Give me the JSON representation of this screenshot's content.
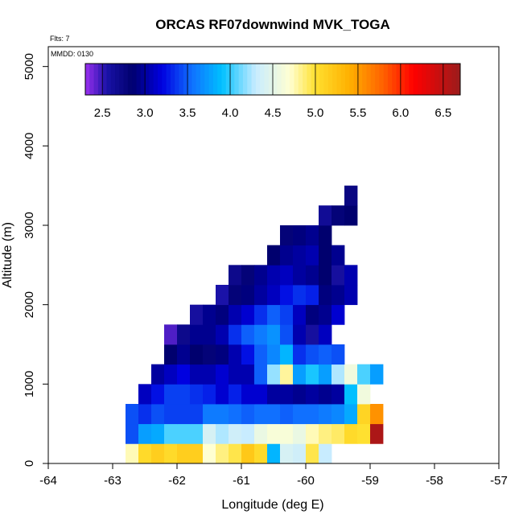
{
  "chart_data": {
    "type": "heatmap",
    "title": "ORCAS RF07downwind MVK_TOGA",
    "xlabel": "Longitude (deg E)",
    "ylabel": "Altitude (m)",
    "xlim": [
      -64,
      -57
    ],
    "ylim": [
      0,
      5250
    ],
    "x_ticks": [
      "-64",
      "-63",
      "-62",
      "-61",
      "-60",
      "-59",
      "-58",
      "-57"
    ],
    "y_ticks": [
      "0",
      "1000",
      "2000",
      "3000",
      "4000",
      "5000"
    ],
    "flights_note": "Flts: 7",
    "date_note": "MMDD: 0130",
    "colorbar": {
      "min": 2.3,
      "max": 6.7,
      "tick_labels": [
        "2.5",
        "3.0",
        "3.5",
        "4.0",
        "4.5",
        "5.0",
        "5.5",
        "6.0",
        "6.5"
      ],
      "tick_values": [
        2.5,
        3.0,
        3.5,
        4.0,
        4.5,
        5.0,
        5.5,
        6.0,
        6.5
      ],
      "stops": [
        {
          "v": 2.3,
          "c": "#9b30f0"
        },
        {
          "v": 2.55,
          "c": "#1a12a8"
        },
        {
          "v": 2.85,
          "c": "#00006e"
        },
        {
          "v": 3.2,
          "c": "#0000e0"
        },
        {
          "v": 3.55,
          "c": "#1070ff"
        },
        {
          "v": 3.9,
          "c": "#00c0ff"
        },
        {
          "v": 4.3,
          "c": "#c8ecff"
        },
        {
          "v": 4.7,
          "c": "#ffffd2"
        },
        {
          "v": 5.0,
          "c": "#ffe030"
        },
        {
          "v": 5.4,
          "c": "#ffb000"
        },
        {
          "v": 5.8,
          "c": "#ff6000"
        },
        {
          "v": 6.15,
          "c": "#ff0000"
        },
        {
          "v": 6.7,
          "c": "#9a1c1c"
        }
      ]
    },
    "grid": {
      "lon_start": -62.8,
      "lon_step": 0.2,
      "alt_step": 250,
      "rows": [
        {
          "alt": 0,
          "start": 0,
          "values": [
            4.75,
            5.05,
            5.15,
            5.05,
            5.15,
            5.15,
            4.7,
            4.85,
            4.95,
            5.2,
            5.05,
            3.85,
            4.4,
            4.35,
            4.95,
            4.3
          ]
        },
        {
          "alt": 250,
          "start": 0,
          "values": [
            3.45,
            3.75,
            3.8,
            4.05,
            4.05,
            4.05,
            4.4,
            4.25,
            4.35,
            4.3,
            4.55,
            4.65,
            4.65,
            4.55,
            4.75,
            4.85,
            4.9,
            5.05,
            5.0,
            6.6
          ]
        },
        {
          "alt": 500,
          "start": 0,
          "values": [
            3.45,
            3.35,
            3.45,
            3.4,
            3.4,
            3.4,
            3.6,
            3.6,
            3.55,
            3.5,
            3.55,
            3.55,
            3.5,
            3.55,
            3.55,
            3.6,
            3.65,
            3.8,
            5.1,
            5.55
          ]
        },
        {
          "alt": 750,
          "start": 1,
          "values": [
            3.1,
            3.25,
            3.4,
            3.4,
            3.35,
            3.3,
            3.15,
            3.3,
            3.15,
            3.15,
            3.0,
            3.0,
            2.95,
            3.0,
            2.95,
            3.0,
            3.9,
            4.6
          ]
        },
        {
          "alt": 1000,
          "start": 2,
          "values": [
            3.0,
            3.1,
            3.2,
            3.05,
            3.05,
            3.15,
            3.05,
            3.05,
            3.5,
            4.2,
            4.8,
            3.75,
            3.95,
            3.75,
            4.25,
            4.6,
            4.05,
            3.75
          ]
        },
        {
          "alt": 1250,
          "start": 3,
          "values": [
            2.85,
            2.95,
            2.85,
            2.8,
            2.9,
            3.05,
            3.25,
            3.5,
            3.65,
            3.85,
            3.35,
            3.45,
            3.5,
            3.45
          ]
        },
        {
          "alt": 1500,
          "start": 3,
          "values": [
            2.45,
            2.7,
            2.95,
            2.95,
            3.05,
            3.35,
            3.5,
            3.6,
            3.7,
            3.45,
            3.05,
            2.6,
            3.1
          ]
        },
        {
          "alt": 1750,
          "start": 5,
          "values": [
            2.6,
            2.95,
            2.9,
            3.05,
            3.15,
            3.35,
            3.5,
            3.4,
            3.1,
            2.9,
            2.95,
            3.15
          ]
        },
        {
          "alt": 2000,
          "start": 7,
          "values": [
            2.55,
            2.8,
            2.9,
            3.0,
            3.1,
            3.25,
            3.35,
            3.3,
            2.9,
            2.95,
            3.05
          ]
        },
        {
          "alt": 2250,
          "start": 8,
          "values": [
            2.7,
            2.8,
            2.95,
            3.05,
            3.1,
            3.0,
            2.95,
            2.85,
            2.6,
            3.05
          ]
        },
        {
          "alt": 2500,
          "start": 11,
          "values": [
            2.85,
            2.95,
            3.0,
            3.05,
            2.85,
            2.95
          ]
        },
        {
          "alt": 2750,
          "start": 12,
          "values": [
            2.8,
            2.9,
            2.95,
            2.85
          ]
        },
        {
          "alt": 3000,
          "start": 15,
          "values": [
            2.65,
            2.8,
            2.85
          ]
        },
        {
          "alt": 3250,
          "start": 17,
          "values": [
            2.75
          ]
        }
      ]
    }
  }
}
